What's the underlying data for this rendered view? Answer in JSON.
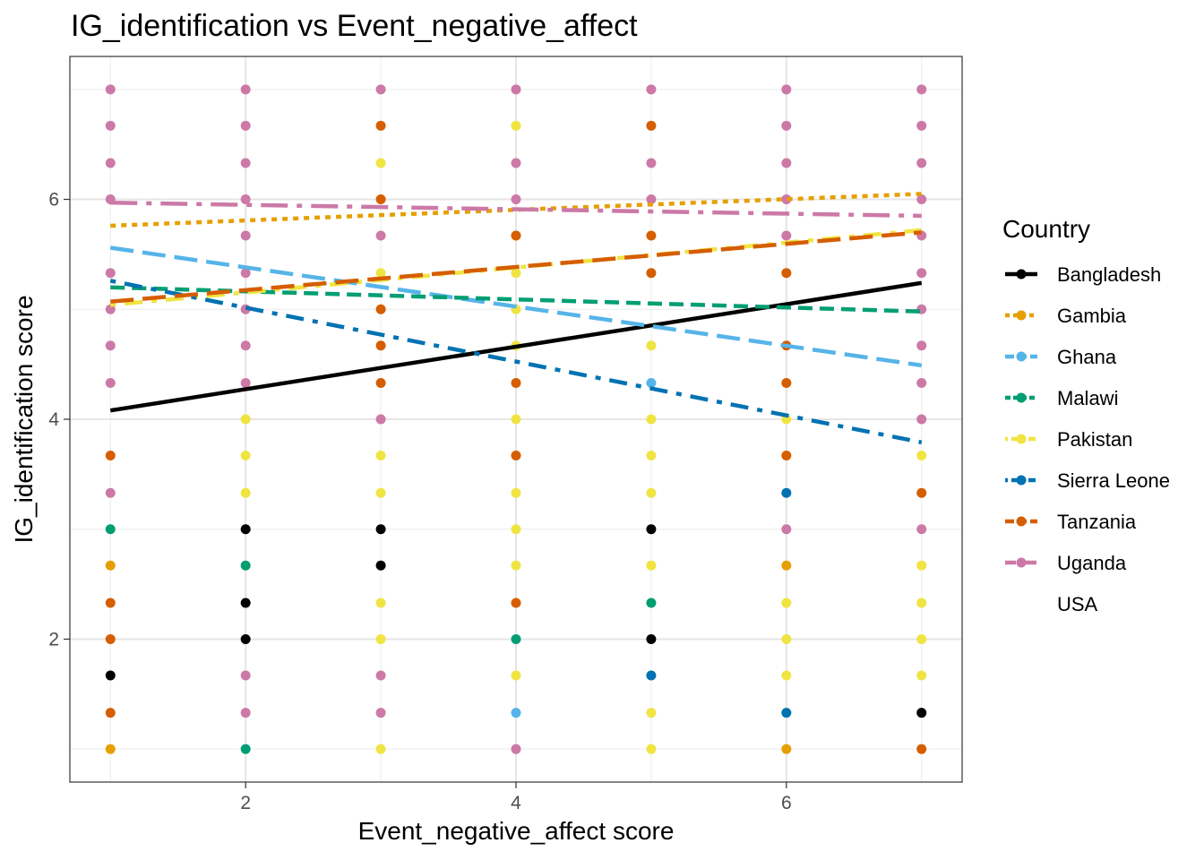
{
  "chart_data": {
    "type": "scatter",
    "title": "IG_identification vs Event_negative_affect",
    "xlabel": "Event_negative_affect score",
    "ylabel": "IG_identification score",
    "xlim": [
      0.7,
      7.3
    ],
    "ylim": [
      0.7,
      7.3
    ],
    "xticks": [
      2,
      4,
      6
    ],
    "yticks": [
      2,
      4,
      6
    ],
    "grid": true,
    "legend": {
      "title": "Country",
      "placement": "right"
    },
    "series": [
      {
        "name": "Bangladesh",
        "color": "#000000",
        "dash": "solid",
        "fit": [
          [
            1,
            4.08
          ],
          [
            7,
            5.24
          ]
        ],
        "points": [
          [
            1,
            1.67
          ],
          [
            2,
            3
          ],
          [
            2,
            2.33
          ],
          [
            2,
            2
          ],
          [
            3,
            3
          ],
          [
            3,
            2.67
          ],
          [
            5,
            3
          ],
          [
            5,
            2
          ],
          [
            7,
            1.33
          ]
        ]
      },
      {
        "name": "Gambia",
        "color": "#E69F00",
        "dash": "dotted",
        "fit": [
          [
            1,
            5.76
          ],
          [
            7,
            6.05
          ]
        ],
        "points": [
          [
            1,
            2.67
          ],
          [
            1,
            1
          ],
          [
            6,
            2.67
          ],
          [
            6,
            1
          ]
        ]
      },
      {
        "name": "Ghana",
        "color": "#56B4E9",
        "dash": "longdash",
        "fit": [
          [
            1,
            5.56
          ],
          [
            7,
            4.49
          ]
        ],
        "points": [
          [
            5,
            4.33
          ],
          [
            4,
            1.33
          ]
        ]
      },
      {
        "name": "Malawi",
        "color": "#009E73",
        "dash": "dashed",
        "fit": [
          [
            1,
            5.2
          ],
          [
            7,
            4.98
          ]
        ],
        "points": [
          [
            1,
            3
          ],
          [
            2,
            2.67
          ],
          [
            2,
            1
          ],
          [
            4,
            2
          ],
          [
            5,
            2.33
          ]
        ]
      },
      {
        "name": "Pakistan",
        "color": "#F0E442",
        "dash": "dotdash",
        "fit": [
          [
            1,
            5.04
          ],
          [
            7,
            5.72
          ]
        ],
        "points": [
          [
            2,
            4
          ],
          [
            2,
            3.67
          ],
          [
            2,
            3.33
          ],
          [
            3,
            6.33
          ],
          [
            3,
            5.33
          ],
          [
            3,
            3.67
          ],
          [
            3,
            3.33
          ],
          [
            3,
            2.33
          ],
          [
            3,
            2
          ],
          [
            3,
            1
          ],
          [
            4,
            6.67
          ],
          [
            4,
            5.67
          ],
          [
            4,
            5.33
          ],
          [
            4,
            5
          ],
          [
            4,
            4.67
          ],
          [
            4,
            4
          ],
          [
            4,
            3.33
          ],
          [
            4,
            3
          ],
          [
            4,
            2.67
          ],
          [
            4,
            1.67
          ],
          [
            5,
            4.67
          ],
          [
            5,
            4
          ],
          [
            5,
            3.67
          ],
          [
            5,
            3.33
          ],
          [
            5,
            2.67
          ],
          [
            5,
            1.33
          ],
          [
            5,
            1
          ],
          [
            6,
            4
          ],
          [
            6,
            2.33
          ],
          [
            6,
            2
          ],
          [
            6,
            1.67
          ],
          [
            7,
            3.67
          ],
          [
            7,
            2.67
          ],
          [
            7,
            2.33
          ],
          [
            7,
            2
          ],
          [
            7,
            1.67
          ]
        ]
      },
      {
        "name": "Sierra Leone",
        "color": "#0072B2",
        "dash": "dotdash",
        "fit": [
          [
            1,
            5.26
          ],
          [
            7,
            3.79
          ]
        ],
        "points": [
          [
            5,
            1.67
          ],
          [
            6,
            3.33
          ],
          [
            6,
            1.33
          ]
        ]
      },
      {
        "name": "Tanzania",
        "color": "#D55E00",
        "dash": "longdash",
        "fit": [
          [
            1,
            5.07
          ],
          [
            7,
            5.7
          ]
        ],
        "points": [
          [
            1,
            3.67
          ],
          [
            1,
            2.33
          ],
          [
            1,
            2
          ],
          [
            1,
            1.33
          ],
          [
            3,
            6.67
          ],
          [
            3,
            6
          ],
          [
            3,
            5
          ],
          [
            3,
            4.67
          ],
          [
            3,
            4.33
          ],
          [
            4,
            5.67
          ],
          [
            4,
            4.33
          ],
          [
            4,
            3.67
          ],
          [
            4,
            2.33
          ],
          [
            5,
            6.67
          ],
          [
            5,
            5.67
          ],
          [
            5,
            5.33
          ],
          [
            6,
            5.33
          ],
          [
            6,
            4.67
          ],
          [
            6,
            4.33
          ],
          [
            6,
            3.67
          ],
          [
            7,
            3.33
          ],
          [
            7,
            1
          ]
        ]
      },
      {
        "name": "Uganda",
        "color": "#CC79A7",
        "dash": "dashdot",
        "fit": [
          [
            1,
            5.97
          ],
          [
            7,
            5.85
          ]
        ],
        "points": [
          [
            1,
            7
          ],
          [
            1,
            6.67
          ],
          [
            1,
            6.33
          ],
          [
            1,
            6
          ],
          [
            1,
            5.33
          ],
          [
            1,
            5
          ],
          [
            1,
            4.67
          ],
          [
            1,
            4.33
          ],
          [
            1,
            3.33
          ],
          [
            2,
            7
          ],
          [
            2,
            6.67
          ],
          [
            2,
            6.33
          ],
          [
            2,
            6
          ],
          [
            2,
            5.67
          ],
          [
            2,
            5.33
          ],
          [
            2,
            5
          ],
          [
            2,
            4.67
          ],
          [
            2,
            4.33
          ],
          [
            2,
            1.67
          ],
          [
            2,
            1.33
          ],
          [
            3,
            7
          ],
          [
            3,
            5.67
          ],
          [
            3,
            4
          ],
          [
            3,
            1.67
          ],
          [
            3,
            1.33
          ],
          [
            4,
            7
          ],
          [
            4,
            6.33
          ],
          [
            4,
            6
          ],
          [
            4,
            1
          ],
          [
            5,
            7
          ],
          [
            5,
            6.33
          ],
          [
            5,
            6
          ],
          [
            6,
            7
          ],
          [
            6,
            6.67
          ],
          [
            6,
            6.33
          ],
          [
            6,
            6
          ],
          [
            6,
            5.67
          ],
          [
            6,
            3
          ],
          [
            7,
            7
          ],
          [
            7,
            6.67
          ],
          [
            7,
            6.33
          ],
          [
            7,
            6
          ],
          [
            7,
            5.67
          ],
          [
            7,
            5.33
          ],
          [
            7,
            5
          ],
          [
            7,
            4.67
          ],
          [
            7,
            4.33
          ],
          [
            7,
            4
          ],
          [
            7,
            3
          ]
        ]
      },
      {
        "name": "USA",
        "color": "#999999",
        "dash": "none",
        "fit": null,
        "points": []
      }
    ]
  }
}
